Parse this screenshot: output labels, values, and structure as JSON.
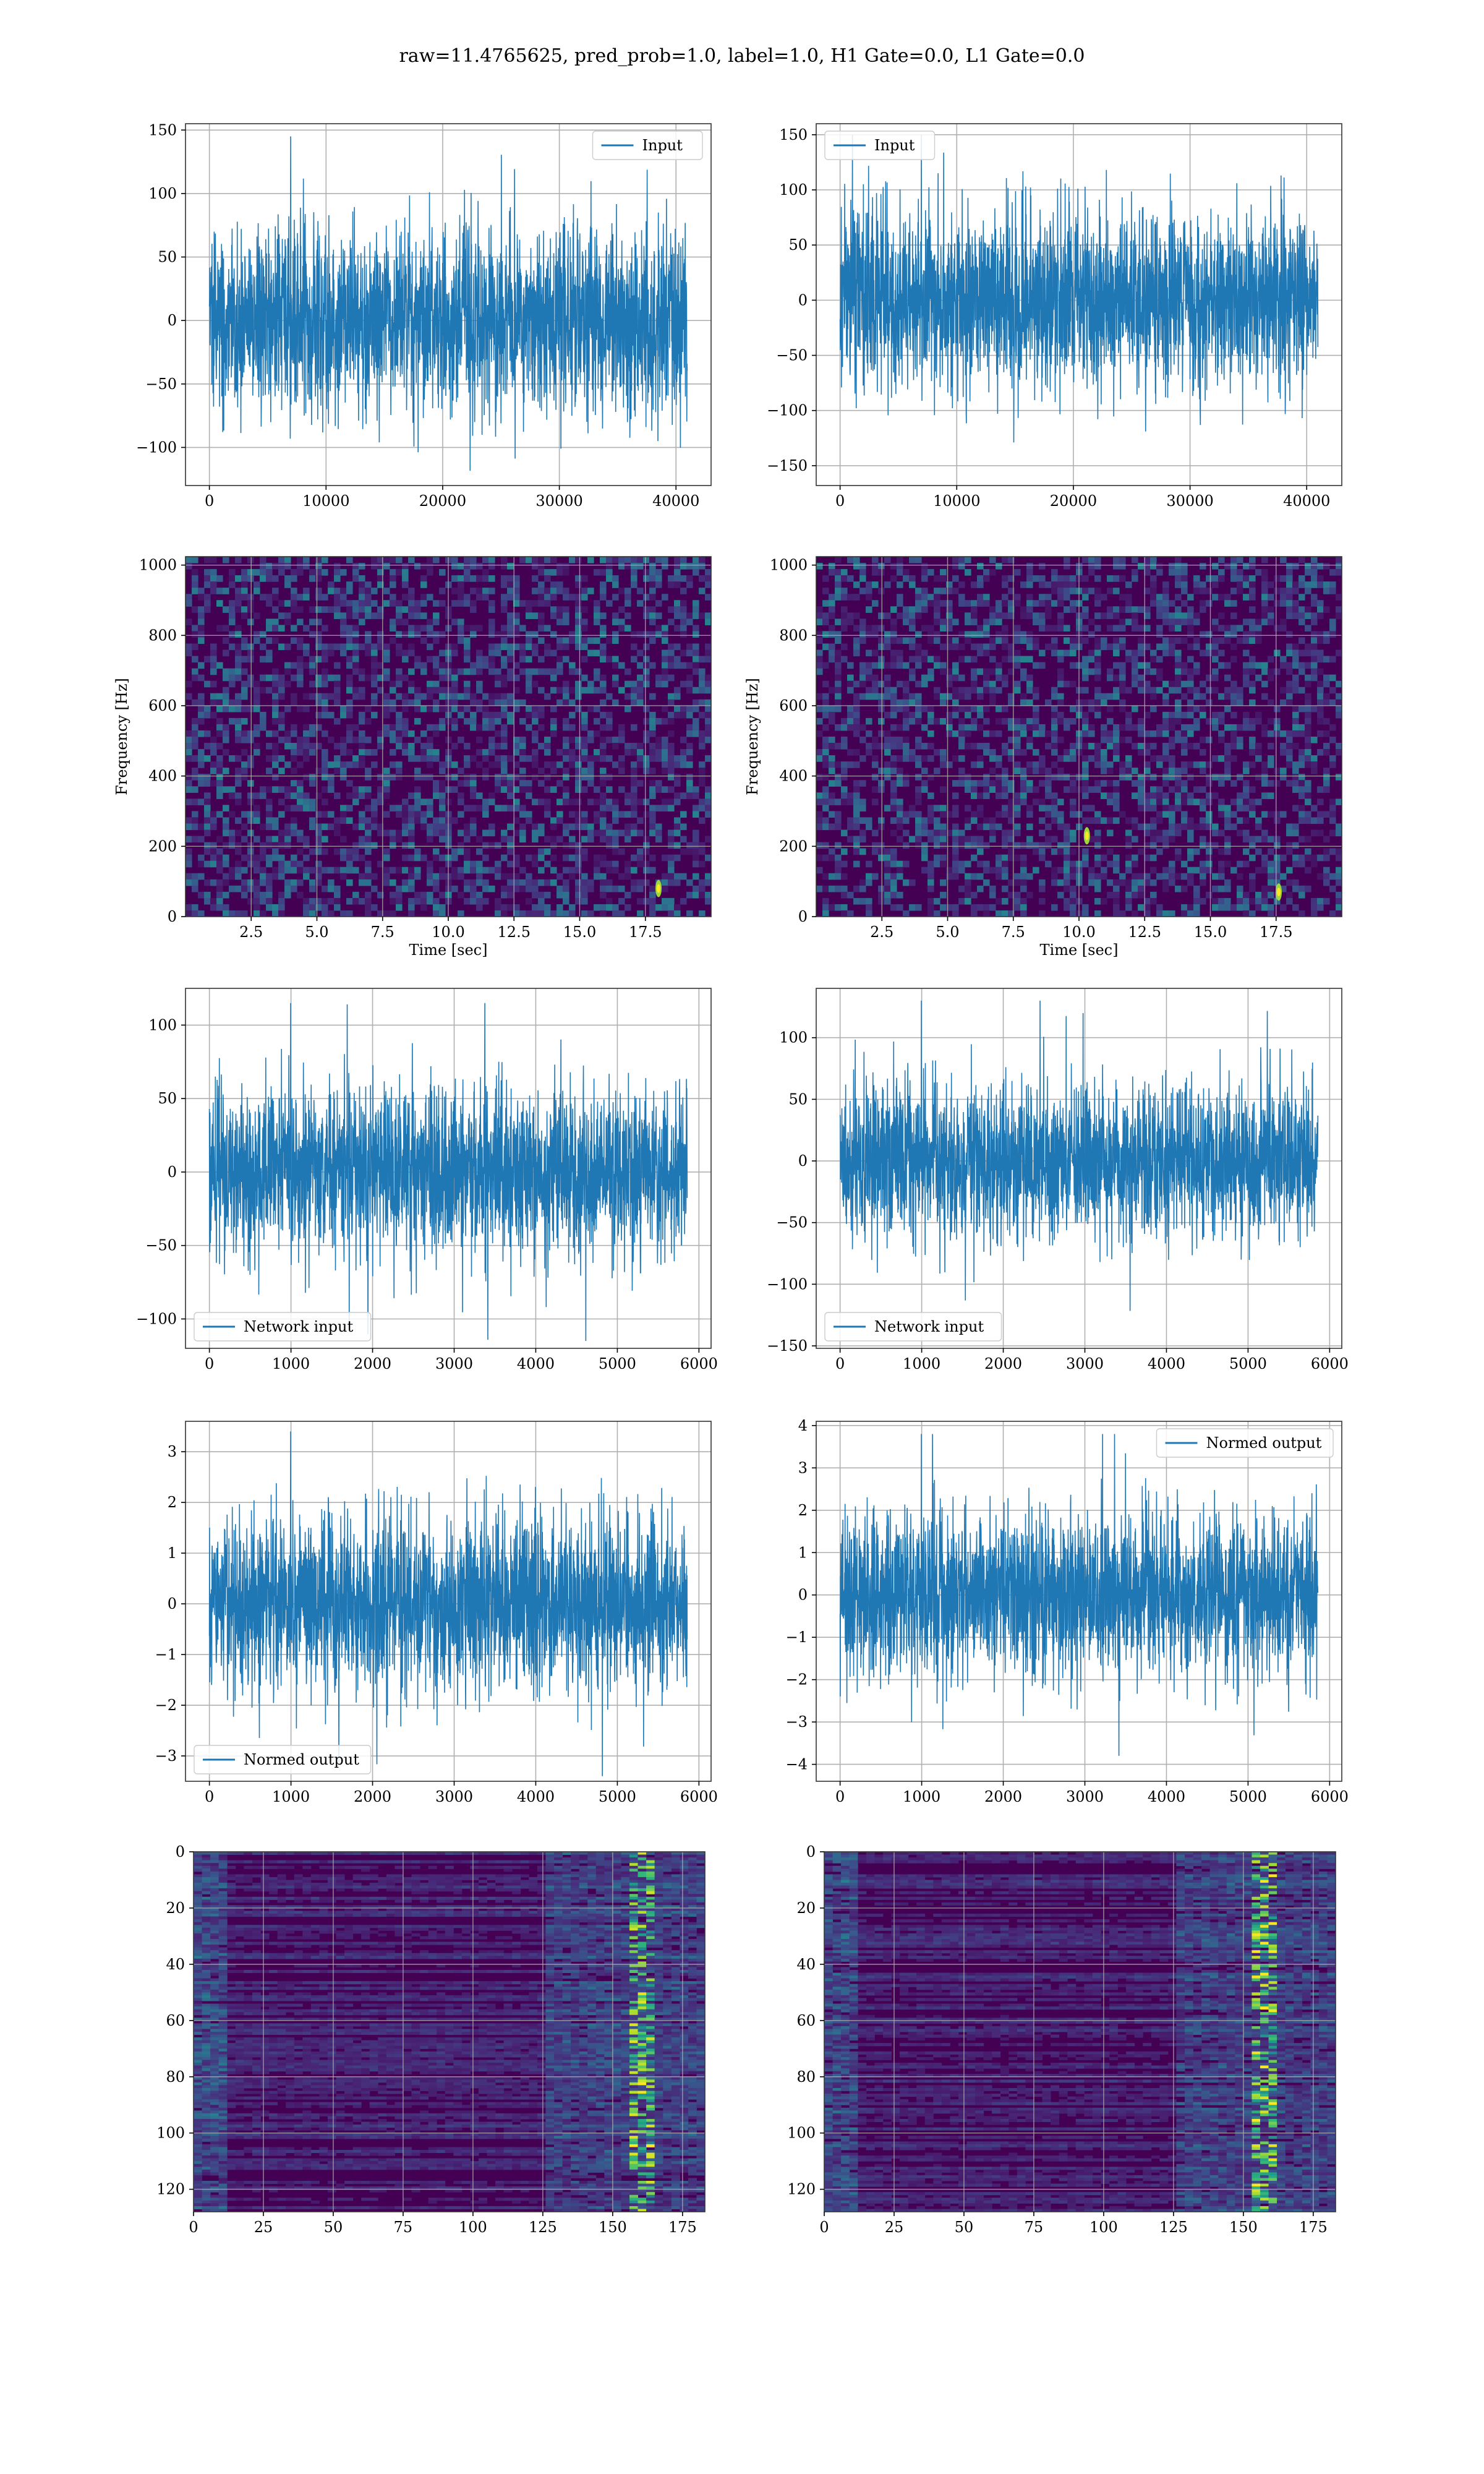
{
  "suptitle": "raw=11.4765625, pred_prob=1.0, label=1.0, H1 Gate=0.0, L1 Gate=0.0",
  "colors": {
    "line": "#1f77b4",
    "grid": "#b0b0b0",
    "viridis_dark": "#440154",
    "viridis_bright": "#fde725"
  },
  "chart_data": [
    {
      "id": "input-h1",
      "type": "line",
      "legend": "Input",
      "legend_loc": "upper right",
      "x_range": [
        0,
        40960
      ],
      "ylim": [
        -130,
        155
      ],
      "amplitude": 35,
      "peak": 145,
      "xticks": [
        0,
        10000,
        20000,
        30000,
        40000
      ],
      "xtick_labels": [
        "0",
        "10000",
        "20000",
        "30000",
        "40000"
      ],
      "yticks": [
        -100,
        -50,
        0,
        50,
        100,
        150
      ],
      "ytick_labels": [
        "−100",
        "−50",
        "0",
        "50",
        "100",
        "150"
      ]
    },
    {
      "id": "input-l1",
      "type": "line",
      "legend": "Input",
      "legend_loc": "upper left",
      "x_range": [
        0,
        40960
      ],
      "ylim": [
        -168,
        160
      ],
      "amplitude": 40,
      "peak": 150,
      "xticks": [
        0,
        10000,
        20000,
        30000,
        40000
      ],
      "xtick_labels": [
        "0",
        "10000",
        "20000",
        "30000",
        "40000"
      ],
      "yticks": [
        -150,
        -100,
        -50,
        0,
        50,
        100,
        150
      ],
      "ytick_labels": [
        "−150",
        "−100",
        "−50",
        "0",
        "50",
        "100",
        "150"
      ]
    },
    {
      "id": "spec-h1",
      "type": "heatmap",
      "xlabel": "Time [sec]",
      "ylabel": "Frequency [Hz]",
      "xlim": [
        0,
        20
      ],
      "ylim": [
        0,
        1024
      ],
      "xticks": [
        2.5,
        5.0,
        7.5,
        10.0,
        12.5,
        15.0,
        17.5
      ],
      "xtick_labels": [
        "2.5",
        "5.0",
        "7.5",
        "10.0",
        "12.5",
        "15.0",
        "17.5"
      ],
      "yticks": [
        0,
        200,
        400,
        600,
        800,
        1000
      ],
      "ytick_labels": [
        "0",
        "200",
        "400",
        "600",
        "800",
        "1000"
      ],
      "hotspots": [
        [
          18.0,
          80
        ]
      ]
    },
    {
      "id": "spec-l1",
      "type": "heatmap",
      "xlabel": "Time [sec]",
      "ylabel": "Frequency [Hz]",
      "xlim": [
        0,
        20
      ],
      "ylim": [
        0,
        1024
      ],
      "xticks": [
        2.5,
        5.0,
        7.5,
        10.0,
        12.5,
        15.0,
        17.5
      ],
      "xtick_labels": [
        "2.5",
        "5.0",
        "7.5",
        "10.0",
        "12.5",
        "15.0",
        "17.5"
      ],
      "yticks": [
        0,
        200,
        400,
        600,
        800,
        1000
      ],
      "ytick_labels": [
        "0",
        "200",
        "400",
        "600",
        "800",
        "1000"
      ],
      "hotspots": [
        [
          17.6,
          70
        ],
        [
          10.3,
          230
        ]
      ]
    },
    {
      "id": "netin-h1",
      "type": "line",
      "legend": "Network input",
      "legend_loc": "lower left",
      "x_range": [
        0,
        5856
      ],
      "ylim": [
        -120,
        125
      ],
      "amplitude": 28,
      "peak": 115,
      "xticks": [
        0,
        1000,
        2000,
        3000,
        4000,
        5000,
        6000
      ],
      "xtick_labels": [
        "0",
        "1000",
        "2000",
        "3000",
        "4000",
        "5000",
        "6000"
      ],
      "yticks": [
        -100,
        -50,
        0,
        50,
        100
      ],
      "ytick_labels": [
        "−100",
        "−50",
        "0",
        "50",
        "100"
      ]
    },
    {
      "id": "netin-l1",
      "type": "line",
      "legend": "Network input",
      "legend_loc": "lower left",
      "x_range": [
        0,
        5856
      ],
      "ylim": [
        -152,
        140
      ],
      "amplitude": 30,
      "peak": 130,
      "xticks": [
        0,
        1000,
        2000,
        3000,
        4000,
        5000,
        6000
      ],
      "xtick_labels": [
        "0",
        "1000",
        "2000",
        "3000",
        "4000",
        "5000",
        "6000"
      ],
      "yticks": [
        -150,
        -100,
        -50,
        0,
        50,
        100
      ],
      "ytick_labels": [
        "−150",
        "−100",
        "−50",
        "0",
        "50",
        "100"
      ]
    },
    {
      "id": "normed-h1",
      "type": "line",
      "legend": "Normed output",
      "legend_loc": "lower left",
      "x_range": [
        0,
        5856
      ],
      "ylim": [
        -3.5,
        3.6
      ],
      "amplitude": 0.85,
      "peak": 3.4,
      "xticks": [
        0,
        1000,
        2000,
        3000,
        4000,
        5000,
        6000
      ],
      "xtick_labels": [
        "0",
        "1000",
        "2000",
        "3000",
        "4000",
        "5000",
        "6000"
      ],
      "yticks": [
        -3,
        -2,
        -1,
        0,
        1,
        2,
        3
      ],
      "ytick_labels": [
        "−3",
        "−2",
        "−1",
        "0",
        "1",
        "2",
        "3"
      ]
    },
    {
      "id": "normed-l1",
      "type": "line",
      "legend": "Normed output",
      "legend_loc": "upper right",
      "x_range": [
        0,
        5856
      ],
      "ylim": [
        -4.4,
        4.1
      ],
      "amplitude": 0.95,
      "peak": 3.8,
      "xticks": [
        0,
        1000,
        2000,
        3000,
        4000,
        5000,
        6000
      ],
      "xtick_labels": [
        "0",
        "1000",
        "2000",
        "3000",
        "4000",
        "5000",
        "6000"
      ],
      "yticks": [
        -4,
        -3,
        -2,
        -1,
        0,
        1,
        2,
        3,
        4
      ],
      "ytick_labels": [
        "−4",
        "−3",
        "−2",
        "−1",
        "0",
        "1",
        "2",
        "3",
        "4"
      ]
    },
    {
      "id": "features-h1",
      "type": "heatmap",
      "xlim": [
        0,
        183
      ],
      "ylim": [
        128,
        0
      ],
      "xticks": [
        0,
        25,
        50,
        75,
        100,
        125,
        150,
        175
      ],
      "xtick_labels": [
        "0",
        "25",
        "50",
        "75",
        "100",
        "125",
        "150",
        "175"
      ],
      "yticks": [
        0,
        20,
        40,
        60,
        80,
        100,
        120
      ],
      "ytick_labels": [
        "0",
        "20",
        "40",
        "60",
        "80",
        "100",
        "120"
      ],
      "bright_columns": [
        157,
        160,
        163
      ]
    },
    {
      "id": "features-l1",
      "type": "heatmap",
      "xlim": [
        0,
        183
      ],
      "ylim": [
        128,
        0
      ],
      "xticks": [
        0,
        25,
        50,
        75,
        100,
        125,
        150,
        175
      ],
      "xtick_labels": [
        "0",
        "25",
        "50",
        "75",
        "100",
        "125",
        "150",
        "175"
      ],
      "yticks": [
        0,
        20,
        40,
        60,
        80,
        100,
        120
      ],
      "ytick_labels": [
        "0",
        "20",
        "40",
        "60",
        "80",
        "100",
        "120"
      ],
      "bright_columns": [
        155,
        158,
        161
      ]
    }
  ]
}
